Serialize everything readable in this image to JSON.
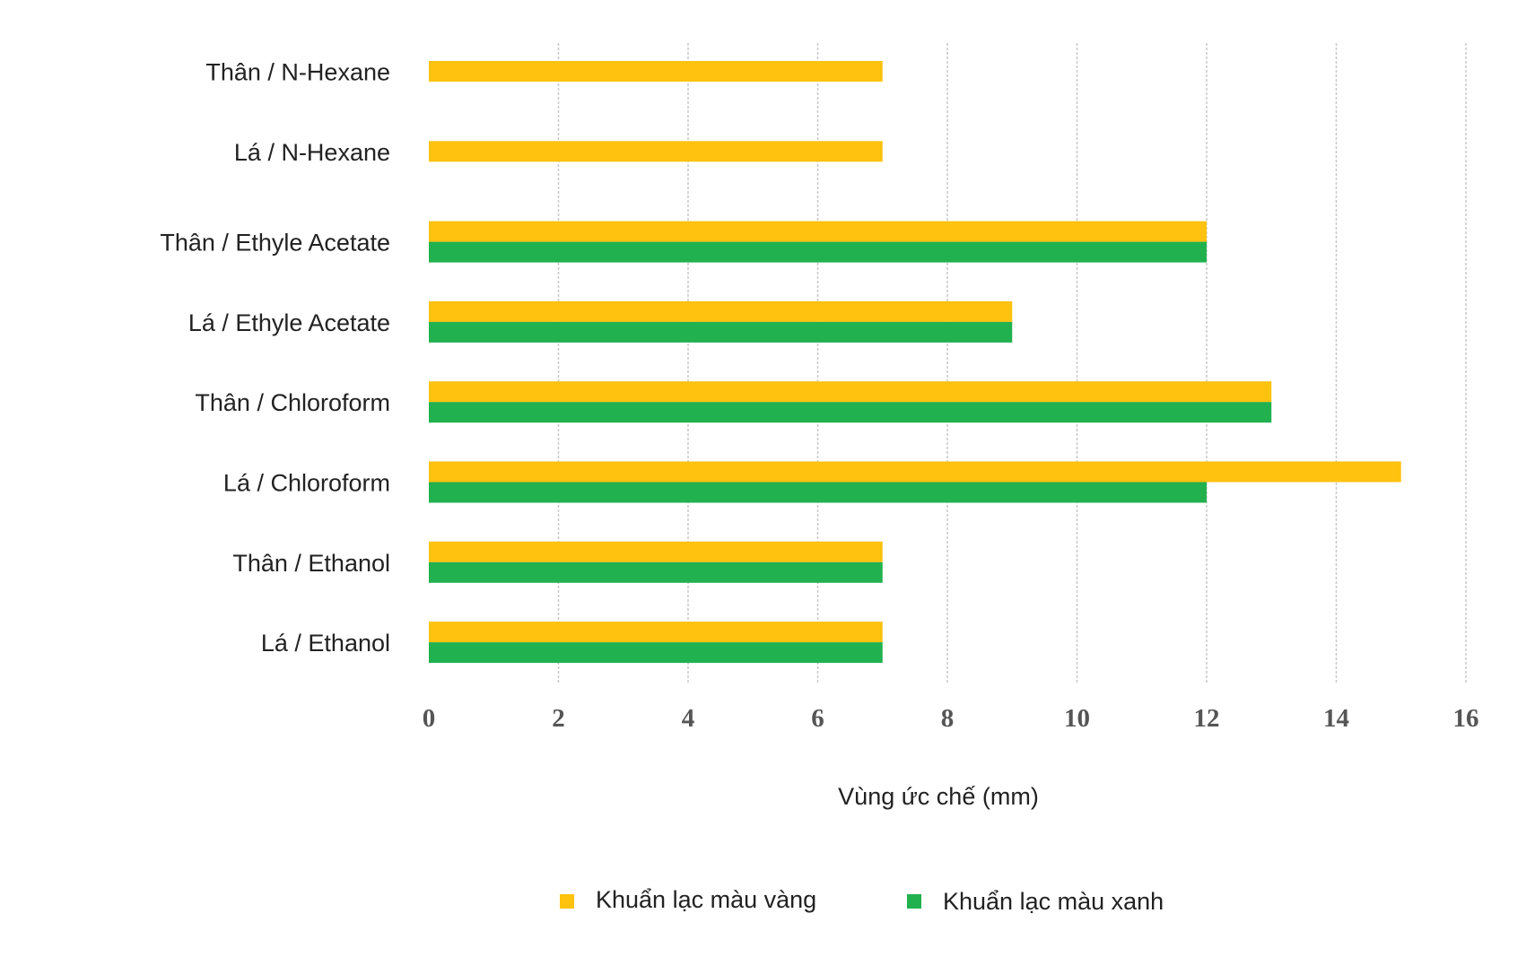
{
  "chart_data": {
    "type": "bar",
    "orientation": "horizontal",
    "categories": [
      "Thân / N-Hexane",
      "Lá / N-Hexane",
      "Thân / Ethyle Acetate",
      "Lá / Ethyle Acetate",
      "Thân / Chloroform",
      "Lá / Chloroform",
      "Thân / Ethanol",
      "Lá / Ethanol"
    ],
    "series": [
      {
        "name": "Khuẩn lạc màu vàng",
        "color": "#FFC20E",
        "values": [
          7,
          7,
          12,
          9,
          13,
          15,
          7,
          7
        ]
      },
      {
        "name": "Khuẩn lạc màu xanh",
        "color": "#21B14F",
        "values": [
          null,
          null,
          12,
          9,
          13,
          12,
          7,
          7
        ]
      }
    ],
    "xlabel": "Vùng ức chế (mm)",
    "ylabel": "",
    "xlim": [
      0,
      16
    ],
    "xticks": [
      "0",
      "2",
      "4",
      "6",
      "8",
      "10",
      "12",
      "14",
      "16"
    ],
    "grid": "vertical",
    "legend_position": "bottom"
  }
}
